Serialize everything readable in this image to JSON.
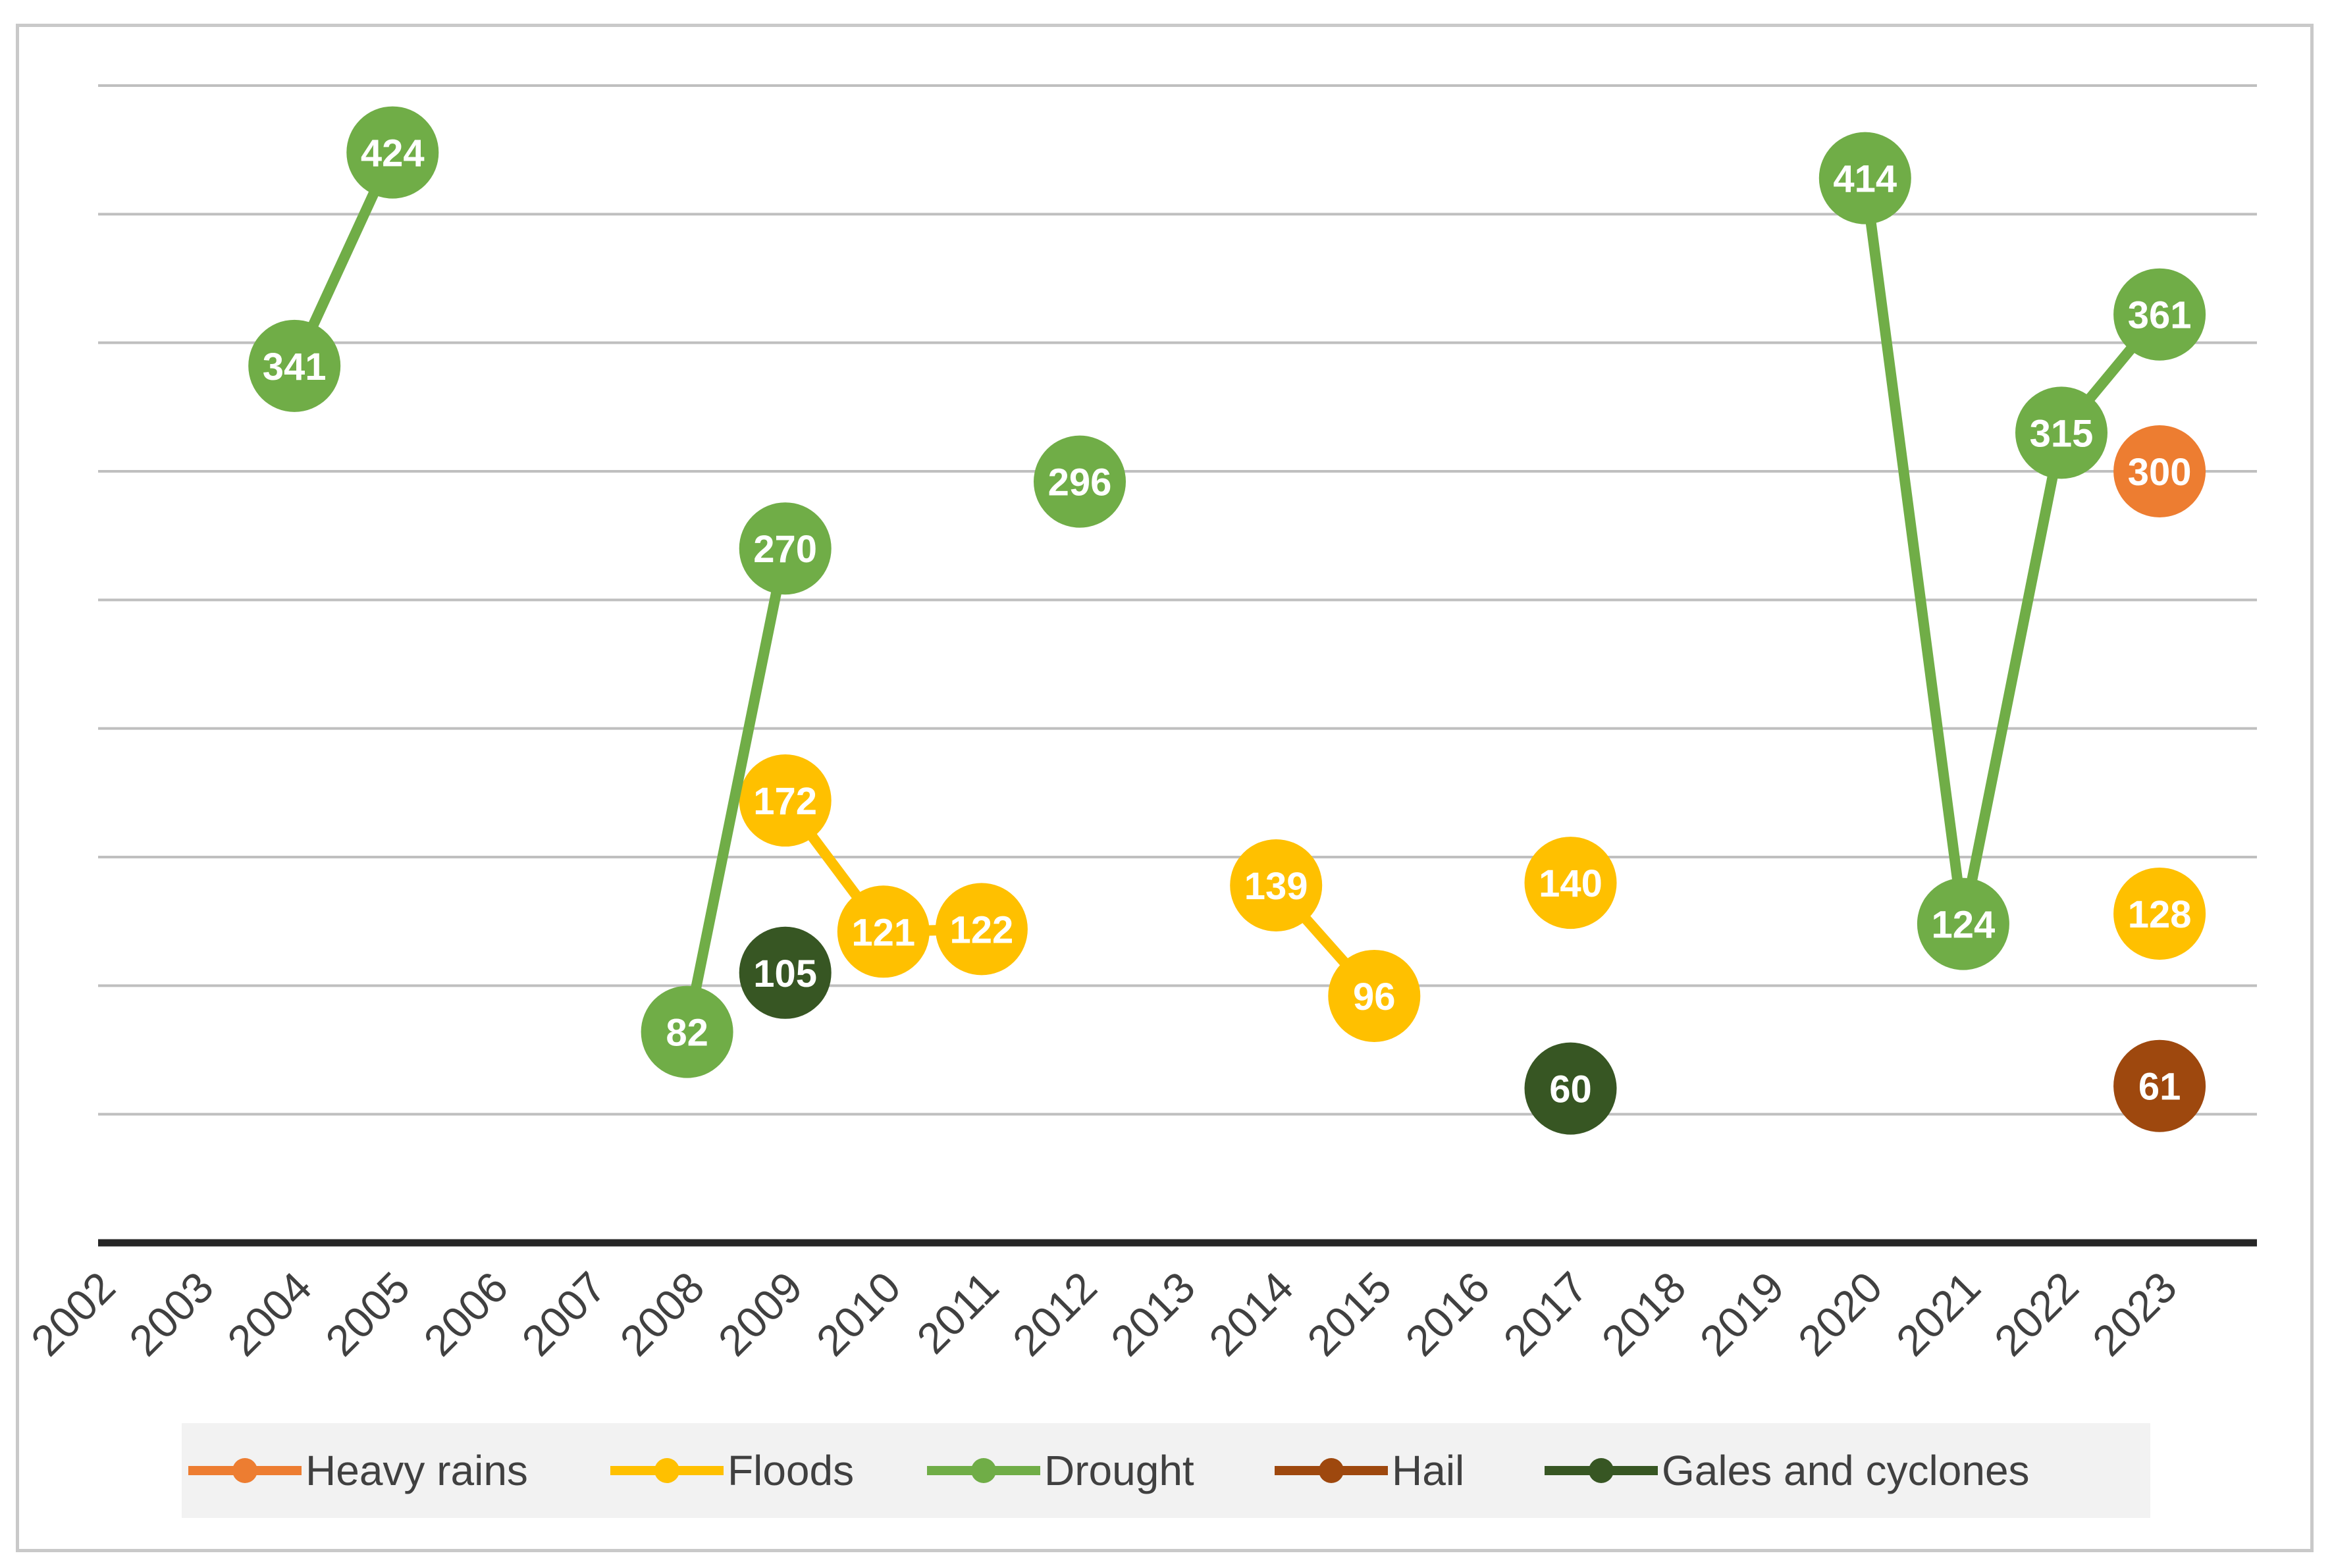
{
  "chart_data": {
    "type": "line",
    "title": "",
    "xlabel": "",
    "ylabel": "",
    "x": [
      "2002",
      "2003",
      "2004",
      "2005",
      "2006",
      "2007",
      "2008",
      "2009",
      "2010",
      "2011",
      "2012",
      "2013",
      "2014",
      "2015",
      "2016",
      "2017",
      "2018",
      "2019",
      "2020",
      "2021",
      "2022",
      "2023"
    ],
    "ylim": [
      0,
      450
    ],
    "grid": true,
    "y_tick_labels_shown": false,
    "legend_position": "bottom",
    "series": [
      {
        "name": "Heavy rains",
        "color": "#ED7D31",
        "values": [
          null,
          null,
          null,
          null,
          null,
          null,
          null,
          null,
          null,
          null,
          null,
          null,
          null,
          null,
          null,
          null,
          null,
          null,
          null,
          null,
          null,
          300
        ]
      },
      {
        "name": "Floods",
        "color": "#FFC000",
        "values": [
          null,
          null,
          null,
          null,
          null,
          null,
          null,
          172,
          121,
          122,
          null,
          null,
          139,
          96,
          null,
          140,
          null,
          null,
          null,
          null,
          null,
          128
        ]
      },
      {
        "name": "Drought",
        "color": "#70AD47",
        "values": [
          null,
          null,
          341,
          424,
          null,
          null,
          82,
          270,
          null,
          null,
          296,
          null,
          null,
          null,
          null,
          null,
          null,
          null,
          414,
          124,
          315,
          361
        ]
      },
      {
        "name": "Hail",
        "color": "#9E480E",
        "values": [
          null,
          null,
          null,
          null,
          null,
          null,
          null,
          null,
          null,
          null,
          null,
          null,
          null,
          null,
          null,
          null,
          null,
          null,
          null,
          null,
          null,
          61
        ]
      },
      {
        "name": "Gales and cyclones",
        "color": "#375623",
        "values": [
          null,
          null,
          null,
          null,
          null,
          null,
          null,
          105,
          null,
          null,
          null,
          null,
          null,
          null,
          null,
          60,
          null,
          null,
          null,
          null,
          null,
          null
        ]
      }
    ]
  }
}
